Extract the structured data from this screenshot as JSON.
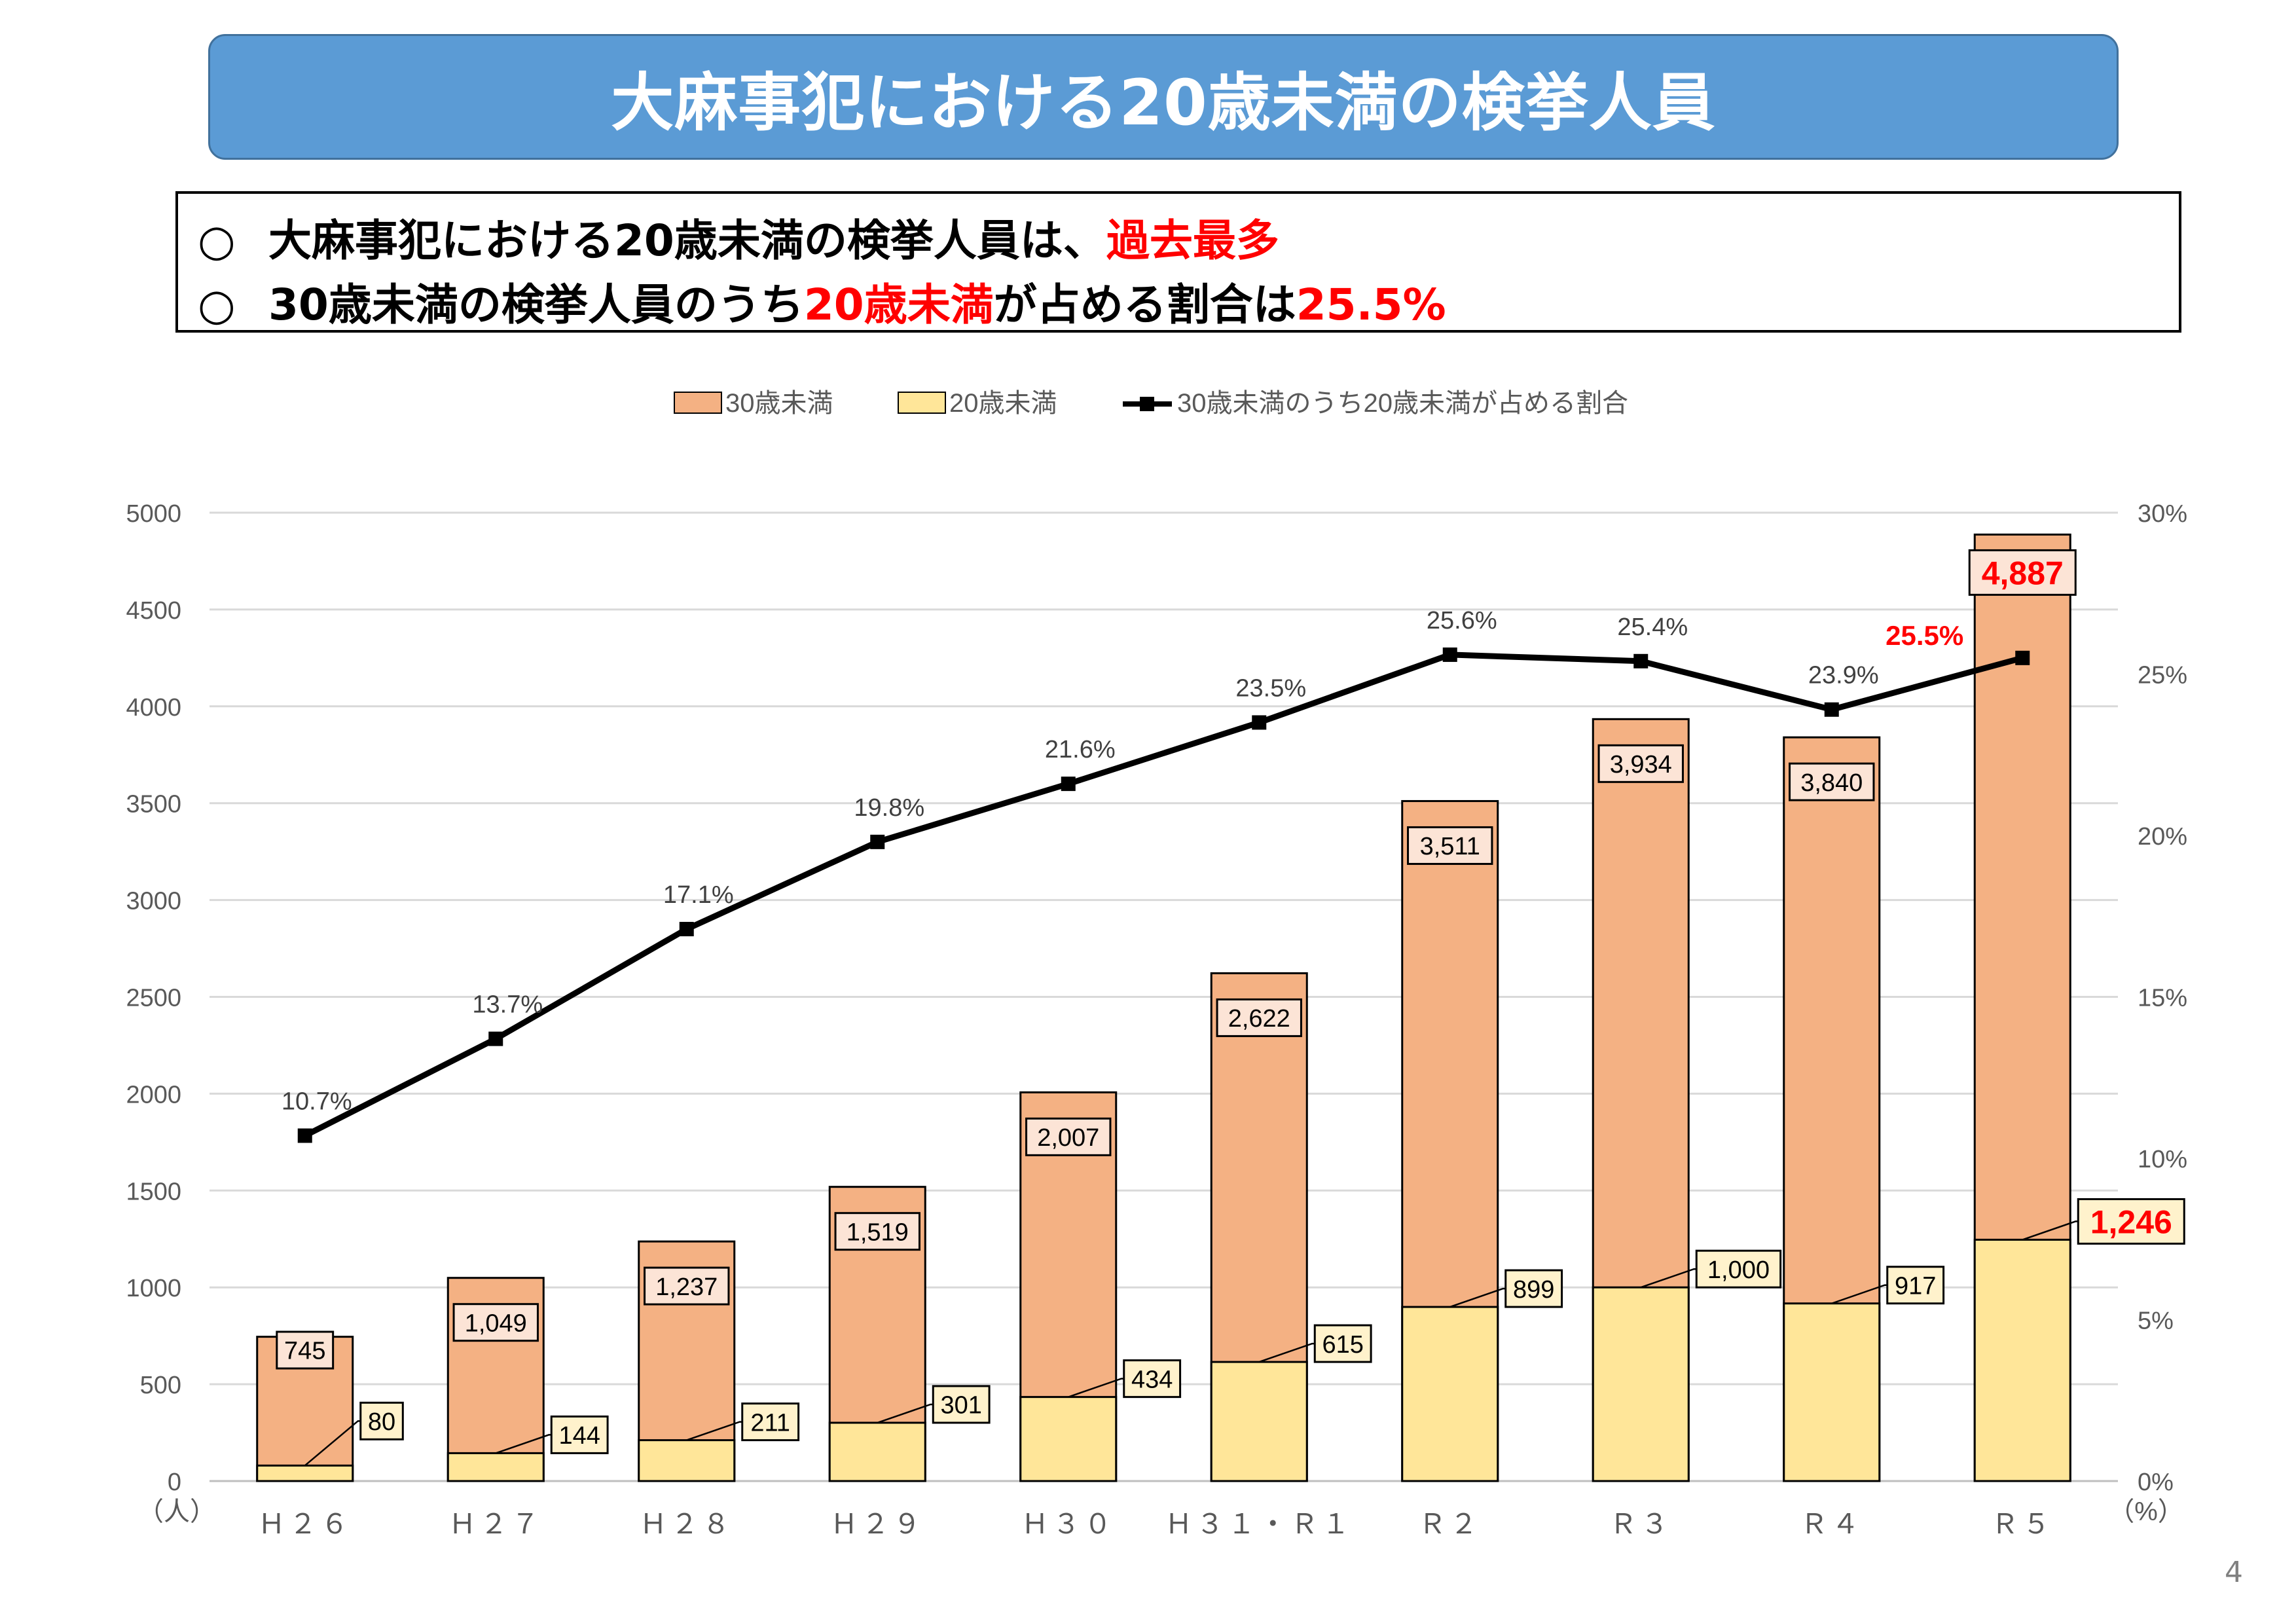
{
  "title": "大麻事犯における20歳未満の検挙人員",
  "summary": {
    "line1": {
      "mark": "○",
      "text": "大麻事犯における20歳未満の検挙人員は、",
      "highlight": "過去最多"
    },
    "line2": {
      "mark": "○",
      "text_a": "30歳未満の検挙人員のうち",
      "highlight_a": "20歳未満",
      "text_b": "が占める割合は",
      "highlight_b": "25.5%"
    }
  },
  "page_number": "4",
  "chart_data": {
    "type": "bar",
    "categories": [
      "Ｈ２６",
      "Ｈ２７",
      "Ｈ２８",
      "Ｈ２９",
      "Ｈ３０",
      "Ｈ３１・Ｒ１",
      "Ｒ２",
      "Ｒ３",
      "Ｒ４",
      "Ｒ５"
    ],
    "series": [
      {
        "name": "30歳未満",
        "kind": "bar",
        "color": "#F4B183",
        "values": [
          745,
          1049,
          1237,
          1519,
          2007,
          2622,
          3511,
          3934,
          3840,
          4887
        ],
        "labels": [
          "745",
          "1,049",
          "1,237",
          "1,519",
          "2,007",
          "2,622",
          "3,511",
          "3,934",
          "3,840",
          "4,887"
        ]
      },
      {
        "name": "20歳未満",
        "kind": "bar",
        "color": "#FFE699",
        "values": [
          80,
          144,
          211,
          301,
          434,
          615,
          899,
          1000,
          917,
          1246
        ],
        "labels": [
          "80",
          "144",
          "211",
          "301",
          "434",
          "615",
          "899",
          "1,000",
          "917",
          "1,246"
        ]
      },
      {
        "name": "30歳未満のうち20歳未満が占める割合",
        "kind": "line",
        "axis": "right",
        "color": "#000000",
        "values": [
          10.7,
          13.7,
          17.1,
          19.8,
          21.6,
          23.5,
          25.6,
          25.4,
          23.9,
          25.5
        ],
        "labels": [
          "10.7%",
          "13.7%",
          "17.1%",
          "19.8%",
          "21.6%",
          "23.5%",
          "25.6%",
          "25.4%",
          "23.9%",
          "25.5%"
        ]
      }
    ],
    "y_left": {
      "range": [
        0,
        5000
      ],
      "ticks": [
        "0",
        "500",
        "1000",
        "1500",
        "2000",
        "2500",
        "3000",
        "3500",
        "4000",
        "4500",
        "5000"
      ],
      "unit": "（人）"
    },
    "y_right": {
      "range": [
        0,
        30
      ],
      "ticks": [
        "0%",
        "5%",
        "10%",
        "15%",
        "20%",
        "25%",
        "30%"
      ],
      "unit": "（%）"
    },
    "highlight_color": "#FF0000",
    "grid": true,
    "legend_position": "top"
  }
}
